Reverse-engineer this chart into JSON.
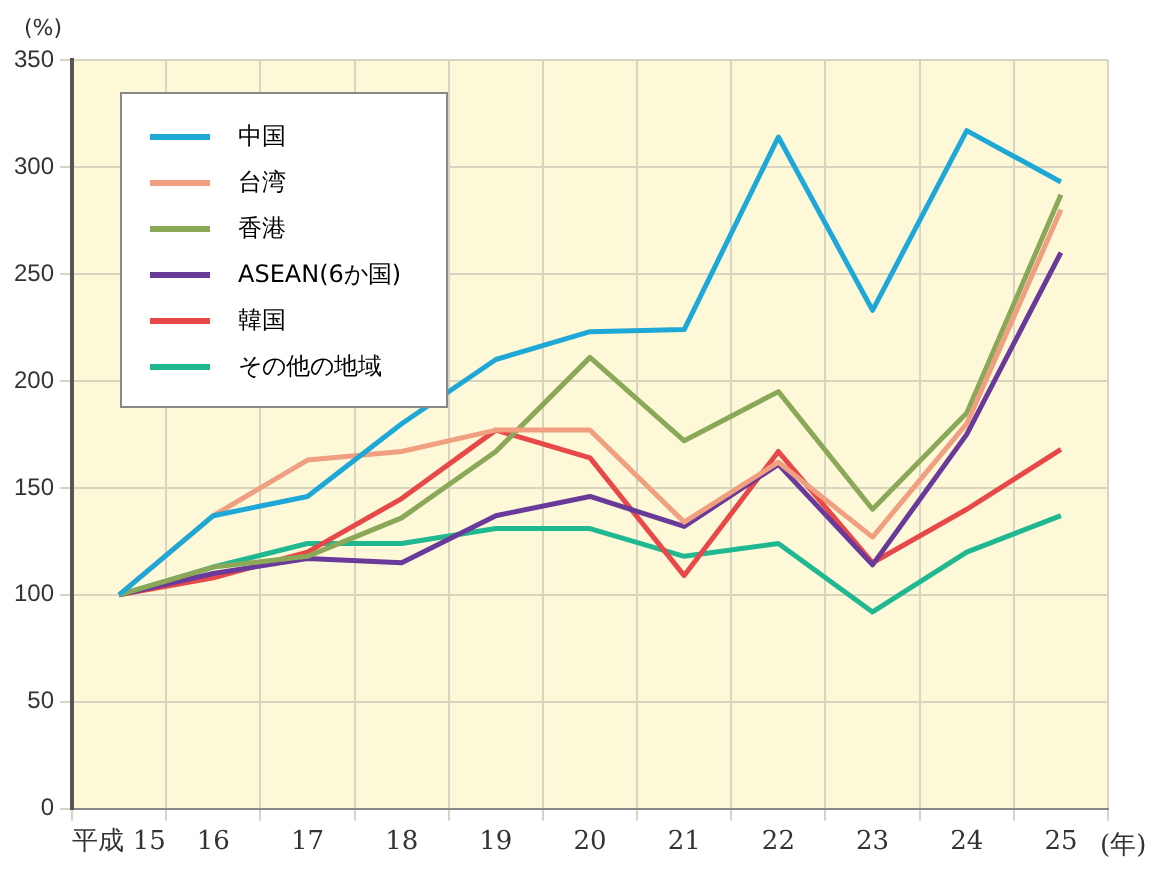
{
  "chart_data": {
    "type": "line",
    "ylabel": "(%)",
    "xlabel": "(年)",
    "categories": [
      "平成 15",
      "16",
      "17",
      "18",
      "19",
      "20",
      "21",
      "22",
      "23",
      "24",
      "25"
    ],
    "series": [
      {
        "name": "中国",
        "color": "#1ea8d8",
        "values": [
          100,
          137,
          146,
          180,
          210,
          223,
          224,
          314,
          233,
          317,
          293
        ]
      },
      {
        "name": "台湾",
        "color": "#f0a080",
        "values": [
          100,
          137,
          163,
          167,
          177,
          177,
          134,
          162,
          127,
          180,
          280
        ]
      },
      {
        "name": "香港",
        "color": "#8aa858",
        "values": [
          100,
          113,
          118,
          136,
          167,
          211,
          172,
          195,
          140,
          185,
          287
        ]
      },
      {
        "name": "ASEAN(6か国)",
        "color": "#6a3a9a",
        "values": [
          100,
          110,
          117,
          115,
          137,
          146,
          132,
          161,
          114,
          175,
          260
        ]
      },
      {
        "name": "韓国",
        "color": "#e84848",
        "values": [
          100,
          108,
          120,
          145,
          177,
          164,
          109,
          167,
          115,
          140,
          168
        ]
      },
      {
        "name": "その他の地域",
        "color": "#20b890",
        "values": [
          100,
          113,
          124,
          124,
          131,
          131,
          118,
          124,
          92,
          120,
          137
        ]
      }
    ],
    "ylim": [
      0,
      350
    ],
    "yticks": [
      0,
      50,
      100,
      150,
      200,
      250,
      300,
      350
    ],
    "grid": true,
    "legend": "top left",
    "marker": "none",
    "line_style": "solid"
  }
}
